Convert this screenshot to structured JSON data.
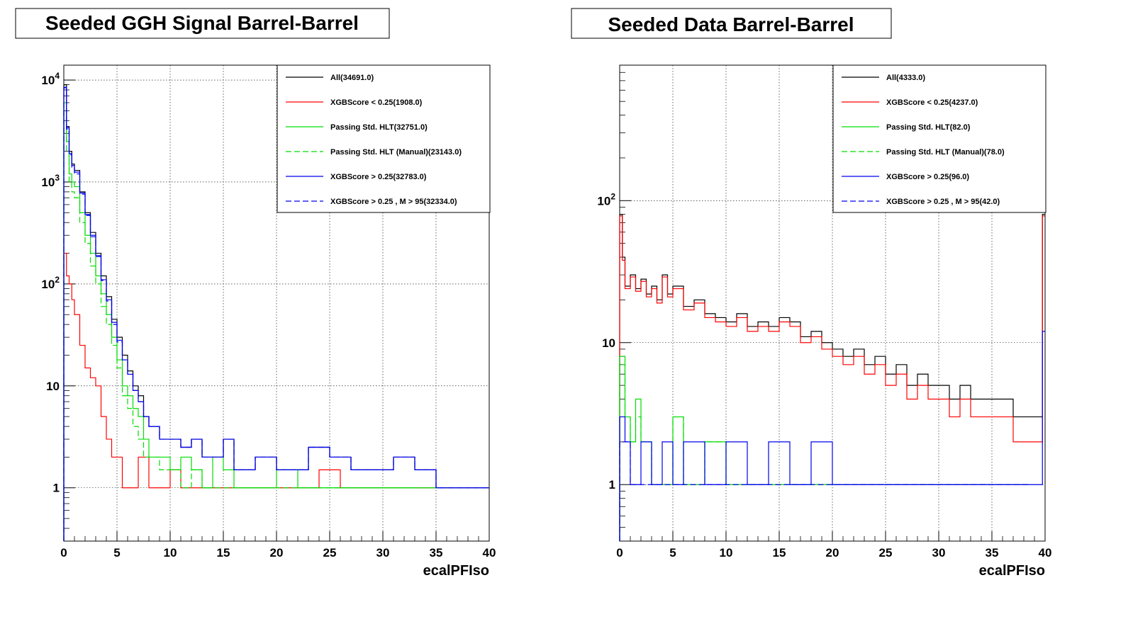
{
  "chart_data": [
    {
      "type": "line",
      "title": "Seeded GGH Signal Barrel-Barrel",
      "xlabel": "ecalPFIso",
      "ylabel": "",
      "xlim": [
        0,
        40
      ],
      "ylim": [
        0.3,
        14000
      ],
      "yscale": "log",
      "grid": true,
      "legend_placement": "top-right",
      "x_ticks": [
        "0",
        "5",
        "10",
        "15",
        "20",
        "25",
        "30",
        "35",
        "40"
      ],
      "y_ticks": [
        {
          "value": 1,
          "base": "1",
          "exp": ""
        },
        {
          "value": 10,
          "base": "10",
          "exp": ""
        },
        {
          "value": 100,
          "base": "10",
          "exp": "2"
        },
        {
          "value": 1000,
          "base": "10",
          "exp": "3"
        },
        {
          "value": 10000,
          "base": "10",
          "exp": "4"
        }
      ],
      "series": [
        {
          "name": "All(34691.0)",
          "color": "#000000",
          "dash": "solid",
          "x": [
            0,
            0.25,
            0.5,
            0.75,
            1,
            1.5,
            2,
            2.5,
            3,
            3.5,
            4,
            4.5,
            5,
            5.5,
            6,
            6.5,
            7,
            7.5,
            8,
            9,
            10,
            11,
            12,
            13,
            14,
            15,
            16,
            18,
            20,
            22,
            23,
            25,
            27,
            29,
            31,
            33,
            35,
            37,
            39.5
          ],
          "y": [
            9000,
            3500,
            2000,
            1500,
            1300,
            800,
            500,
            320,
            200,
            120,
            75,
            45,
            30,
            20,
            14,
            10,
            8,
            5,
            4,
            3,
            3,
            2.5,
            3,
            2,
            2,
            3,
            1.5,
            2,
            1.5,
            1.5,
            2.5,
            2,
            1.5,
            1.5,
            2,
            1.5,
            1,
            1,
            1
          ]
        },
        {
          "name": "XGBScore < 0.25(1908.0)",
          "color": "#ff0000",
          "dash": "solid",
          "x": [
            0,
            0.25,
            0.5,
            0.75,
            1,
            1.5,
            2,
            2.5,
            3,
            3.5,
            4,
            4.5,
            5,
            5.5,
            6,
            7,
            8,
            9,
            10,
            11,
            12,
            14,
            16,
            18,
            20,
            22,
            24,
            26,
            28,
            30,
            33,
            36,
            39.5
          ],
          "y": [
            200,
            120,
            100,
            70,
            50,
            25,
            15,
            12,
            10,
            5,
            3,
            2,
            2,
            1,
            1,
            2,
            1,
            1,
            1.5,
            1,
            1,
            1,
            1,
            1,
            1,
            1,
            1.5,
            1,
            1,
            1,
            1,
            1,
            1
          ]
        },
        {
          "name": "Passing Std. HLT(32751.0)",
          "color": "#00dd00",
          "dash": "solid",
          "x": [
            0,
            0.25,
            0.5,
            0.75,
            1,
            1.5,
            2,
            2.5,
            3,
            3.5,
            4,
            4.5,
            5,
            5.5,
            6,
            6.5,
            7,
            7.5,
            8,
            9,
            10,
            11,
            12,
            13,
            14,
            15,
            16,
            18,
            20,
            22,
            24,
            26,
            28,
            30,
            32,
            34,
            37,
            39.5
          ],
          "y": [
            6000,
            2500,
            1200,
            1000,
            900,
            500,
            300,
            200,
            120,
            80,
            50,
            30,
            18,
            10,
            8,
            6,
            5,
            3,
            2,
            2,
            1.5,
            2,
            1.5,
            1,
            2,
            1.5,
            1,
            1,
            1.5,
            1,
            1,
            1,
            1,
            1,
            1,
            1,
            1,
            1
          ]
        },
        {
          "name": "Passing Std. HLT (Manual)(23143.0)",
          "color": "#00dd00",
          "dash": "dashed",
          "x": [
            0,
            0.25,
            0.5,
            0.75,
            1,
            1.5,
            2,
            2.5,
            3,
            3.5,
            4,
            4.5,
            5,
            5.5,
            6,
            6.5,
            7,
            7.5,
            8,
            9,
            10,
            11,
            12,
            13,
            14,
            15,
            16,
            18,
            20,
            22,
            24,
            26,
            28,
            30,
            33
          ],
          "y": [
            5000,
            2000,
            1000,
            800,
            700,
            400,
            250,
            150,
            100,
            60,
            40,
            25,
            15,
            8,
            6,
            4,
            3,
            2,
            2,
            1.5,
            1.5,
            1,
            1.5,
            1,
            1,
            1,
            1,
            1,
            1,
            1,
            1,
            1,
            1,
            1,
            1
          ]
        },
        {
          "name": "XGBScore > 0.25(32783.0)",
          "color": "#0000ee",
          "dash": "solid",
          "x": [
            0,
            0.25,
            0.5,
            0.75,
            1,
            1.5,
            2,
            2.5,
            3,
            3.5,
            4,
            4.5,
            5,
            5.5,
            6,
            6.5,
            7,
            7.5,
            8,
            9,
            10,
            11,
            12,
            13,
            14,
            15,
            16,
            18,
            20,
            22,
            23,
            25,
            27,
            29,
            31,
            33,
            35,
            37,
            39.5
          ],
          "y": [
            8500,
            3400,
            1900,
            1450,
            1250,
            780,
            480,
            300,
            190,
            110,
            70,
            42,
            28,
            18,
            13,
            9,
            7,
            5,
            4,
            3,
            3,
            2.5,
            3,
            2,
            2,
            3,
            1.5,
            2,
            1.5,
            1.5,
            2.5,
            2,
            1.5,
            1.5,
            2,
            1.5,
            1,
            1,
            1
          ]
        },
        {
          "name": "XGBScore > 0.25 , M > 95(32334.0)",
          "color": "#0000ee",
          "dash": "dashed",
          "x": [
            0,
            0.25,
            0.5,
            0.75,
            1,
            1.5,
            2,
            2.5,
            3,
            3.5,
            4,
            4.5,
            5,
            5.5,
            6,
            6.5,
            7,
            7.5,
            8,
            9,
            10,
            11,
            12,
            13,
            14,
            15,
            16,
            18,
            20,
            22,
            23,
            25,
            27,
            29,
            31,
            33,
            35,
            37,
            39.5
          ],
          "y": [
            8400,
            3300,
            1850,
            1400,
            1200,
            760,
            470,
            290,
            185,
            108,
            68,
            40,
            27,
            18,
            13,
            9,
            7,
            5,
            4,
            3,
            3,
            2.5,
            3,
            2,
            2,
            3,
            1.5,
            2,
            1.5,
            1.5,
            2.5,
            2,
            1.5,
            1.5,
            2,
            1.5,
            1,
            1,
            1
          ]
        }
      ]
    },
    {
      "type": "line",
      "title": "Seeded Data Barrel-Barrel",
      "xlabel": "ecalPFIso",
      "ylabel": "",
      "xlim": [
        0,
        40
      ],
      "ylim": [
        0.4,
        900
      ],
      "yscale": "log",
      "grid": true,
      "legend_placement": "top-right",
      "x_ticks": [
        "0",
        "5",
        "10",
        "15",
        "20",
        "25",
        "30",
        "35",
        "40"
      ],
      "y_ticks": [
        {
          "value": 1,
          "base": "1",
          "exp": ""
        },
        {
          "value": 10,
          "base": "10",
          "exp": ""
        },
        {
          "value": 100,
          "base": "10",
          "exp": "2"
        }
      ],
      "series": [
        {
          "name": "All(4333.0)",
          "color": "#000000",
          "dash": "solid",
          "x": [
            0,
            0.25,
            0.5,
            1,
            1.5,
            2,
            2.5,
            3,
            3.5,
            4,
            4.5,
            5,
            6,
            7,
            8,
            9,
            10,
            11,
            12,
            13,
            14,
            15,
            16,
            17,
            18,
            19,
            20,
            21,
            22,
            23,
            24,
            25,
            26,
            27,
            28,
            29,
            30,
            31,
            32,
            33,
            34,
            35,
            36,
            37,
            38,
            39,
            39.75
          ],
          "y": [
            80,
            40,
            25,
            30,
            24,
            28,
            22,
            25,
            20,
            30,
            22,
            25,
            18,
            20,
            16,
            15,
            14,
            16,
            13,
            14,
            13,
            15,
            14,
            11,
            12,
            10,
            9,
            8,
            9,
            7,
            8,
            6,
            7,
            5,
            6,
            5,
            5,
            4,
            5,
            4,
            4,
            4,
            4,
            3,
            3,
            3,
            80
          ]
        },
        {
          "name": "XGBScore < 0.25(4237.0)",
          "color": "#ff0000",
          "dash": "solid",
          "x": [
            0,
            0.25,
            0.5,
            1,
            1.5,
            2,
            2.5,
            3,
            3.5,
            4,
            4.5,
            5,
            6,
            7,
            8,
            9,
            10,
            11,
            12,
            13,
            14,
            15,
            16,
            17,
            18,
            19,
            20,
            21,
            22,
            23,
            24,
            25,
            26,
            27,
            28,
            29,
            30,
            31,
            32,
            33,
            34,
            35,
            36,
            37,
            38,
            39,
            39.75
          ],
          "y": [
            78,
            38,
            24,
            29,
            23,
            27,
            21,
            24,
            19,
            29,
            21,
            24,
            17,
            19,
            15,
            14,
            13,
            15,
            12,
            13,
            12,
            14,
            13,
            10,
            11,
            9,
            8,
            7,
            8,
            6,
            7,
            5,
            6,
            4,
            5,
            4,
            4,
            3,
            4,
            3,
            3,
            3,
            3,
            2,
            2,
            2,
            78
          ]
        },
        {
          "name": "Passing Std. HLT(82.0)",
          "color": "#00dd00",
          "dash": "solid",
          "x": [
            0,
            0.5,
            1,
            1.5,
            2,
            3,
            4,
            5,
            6,
            8,
            10,
            12,
            15,
            20,
            25,
            30,
            34,
            38
          ],
          "y": [
            8,
            3,
            2,
            4,
            2,
            1,
            1,
            3,
            1,
            2,
            1,
            1,
            1,
            1,
            1,
            1,
            1,
            1
          ]
        },
        {
          "name": "Passing Std. HLT (Manual)(78.0)",
          "color": "#00dd00",
          "dash": "dashed",
          "x": [
            0,
            0.5,
            1,
            1.5,
            2,
            3,
            4,
            5,
            6,
            8,
            10,
            12,
            15,
            20,
            25,
            27.5,
            30,
            34
          ],
          "y": [
            7,
            3,
            2,
            3,
            2,
            1,
            1,
            3,
            1,
            2,
            1,
            1,
            1,
            1,
            1,
            1,
            1,
            1
          ]
        },
        {
          "name": "XGBScore > 0.25(96.0)",
          "color": "#0000ee",
          "dash": "solid",
          "x": [
            0,
            0.5,
            1,
            2,
            3,
            4,
            5,
            6,
            8,
            10,
            12,
            14,
            16,
            18,
            20,
            22,
            25,
            28,
            30,
            33,
            36,
            39.75
          ],
          "y": [
            3,
            2,
            1,
            2,
            1,
            2,
            1,
            2,
            1,
            2,
            1,
            2,
            1,
            2,
            1,
            1,
            1,
            1,
            1,
            1,
            1,
            12
          ]
        },
        {
          "name": "XGBScore > 0.25 , M > 95(42.0)",
          "color": "#0000ee",
          "dash": "dashed",
          "x": [
            0,
            1,
            2,
            4,
            6,
            8,
            10,
            14,
            18,
            22,
            26,
            30,
            34,
            38
          ],
          "y": [
            2,
            1,
            1,
            1,
            1,
            1,
            1,
            1,
            1,
            1,
            1,
            1,
            1,
            1
          ]
        }
      ]
    }
  ]
}
